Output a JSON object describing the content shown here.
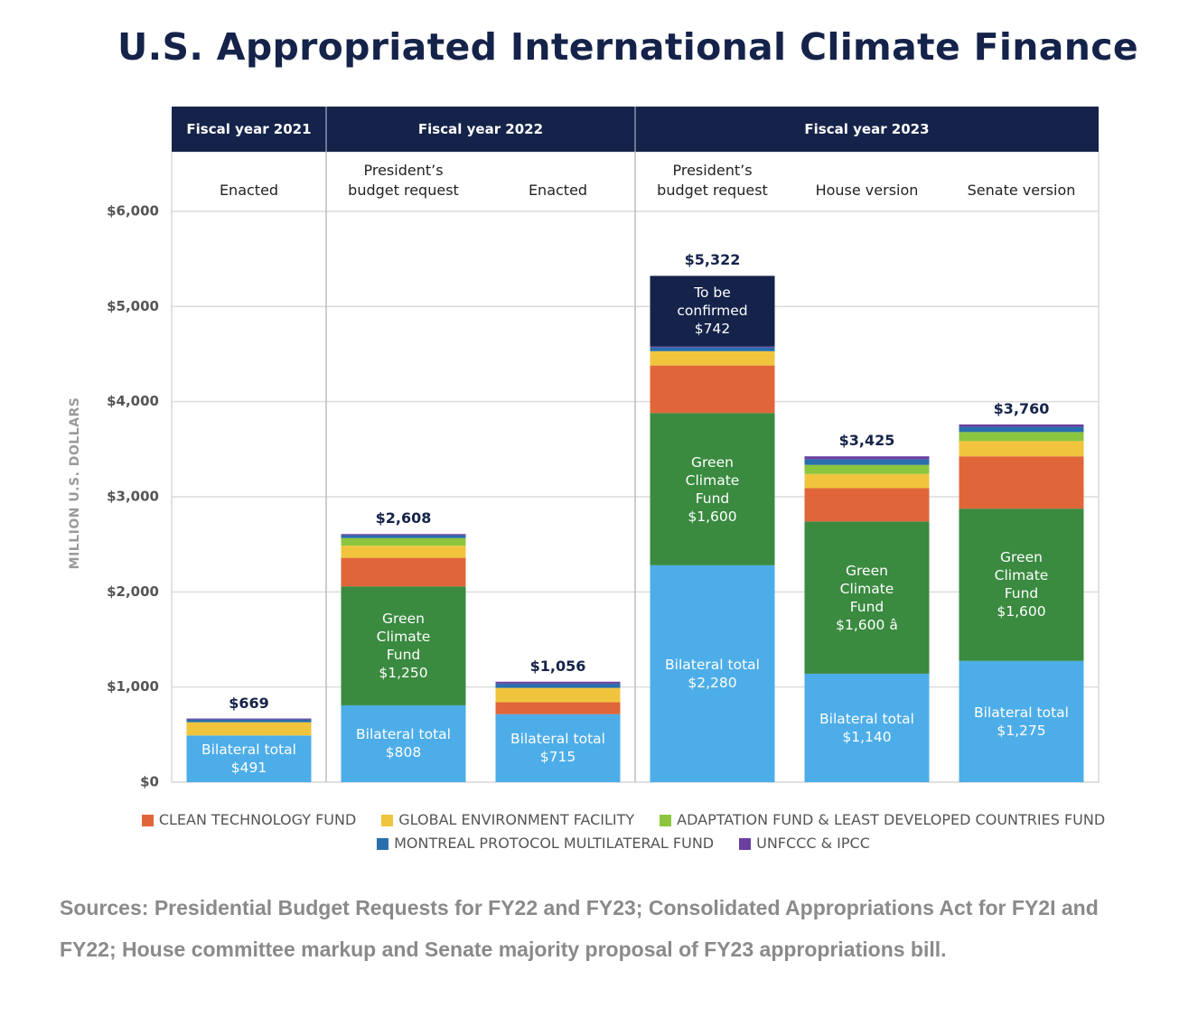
{
  "chart_data": {
    "type": "stacked-bar",
    "title": "U.S. Appropriated International Climate Finance",
    "y_label": "MILLION U.S. DOLLARS",
    "groups": [
      {
        "label": "Fiscal year 2021",
        "categories": [
          "Enacted"
        ]
      },
      {
        "label": "Fiscal year 2022",
        "categories": [
          "President’s budget request",
          "Enacted"
        ]
      },
      {
        "label": "Fiscal year 2023",
        "categories": [
          "President’s budget request",
          "House version",
          "Senate version"
        ]
      }
    ],
    "series": [
      {
        "name": "Bilateral total",
        "color": "#4dade8",
        "values": [
          491,
          808,
          715,
          2280,
          1140,
          1275
        ],
        "value_labels": [
          "$491",
          "$808",
          "$715",
          "$2,280",
          "$1,140",
          "$1,275"
        ]
      },
      {
        "name": "Green Climate Fund",
        "color": "#3a8a40",
        "values": [
          0,
          1250,
          0,
          1600,
          1600,
          1600
        ],
        "value_labels": [
          null,
          "$1,250",
          null,
          "$1,600",
          "$1,600 â",
          "$1,600"
        ]
      },
      {
        "name": "CLEAN TECHNOLOGY FUND",
        "color": "#e0663a",
        "values": [
          0,
          300,
          125,
          500,
          350,
          550
        ]
      },
      {
        "name": "GLOBAL ENVIRONMENT FACILITY",
        "color": "#f0c53d",
        "values": [
          139,
          128,
          151,
          150,
          150,
          160
        ]
      },
      {
        "name": "ADAPTATION FUND & LEAST DEVELOPED COUNTRIES FUND",
        "color": "#8cc63e",
        "values": [
          0,
          80,
          0,
          0,
          95,
          95
        ]
      },
      {
        "name": "MONTREAL PROTOCOL MULTILATERAL FUND",
        "color": "#2a6fad",
        "values": [
          29,
          30,
          45,
          40,
          60,
          55
        ]
      },
      {
        "name": "UNFCCC & IPCC",
        "color": "#6a3fa0",
        "values": [
          10,
          12,
          20,
          10,
          30,
          25
        ]
      },
      {
        "name": "To be confirmed",
        "color": "#15234a",
        "values": [
          0,
          0,
          0,
          742,
          0,
          0
        ],
        "value_labels": [
          null,
          null,
          null,
          "$742",
          null,
          null
        ]
      }
    ],
    "totals": [
      669,
      2608,
      1056,
      5322,
      3425,
      3760
    ],
    "total_labels": [
      "$669",
      "$2,608",
      "$1,056",
      "$5,322",
      "$3,425",
      "$3,760"
    ],
    "ylim": [
      0,
      6000
    ],
    "yticks": [
      {
        "value": 0,
        "label": "$0"
      },
      {
        "value": 1000,
        "label": "$1,000"
      },
      {
        "value": 2000,
        "label": "$2,000"
      },
      {
        "value": 3000,
        "label": "$3,000"
      },
      {
        "value": 4000,
        "label": "$4,000"
      },
      {
        "value": 5000,
        "label": "$5,000"
      },
      {
        "value": 6000,
        "label": "$6,000"
      }
    ],
    "grid": true,
    "legend": "bottom",
    "header_color": "#15234a",
    "source": "Sources: Presidential Budget Requests for FY22 and FY23; Consolidated Appropriations Act for FY2I and FY22; House committee markup and Senate majority proposal of FY23 appropriations bill."
  }
}
